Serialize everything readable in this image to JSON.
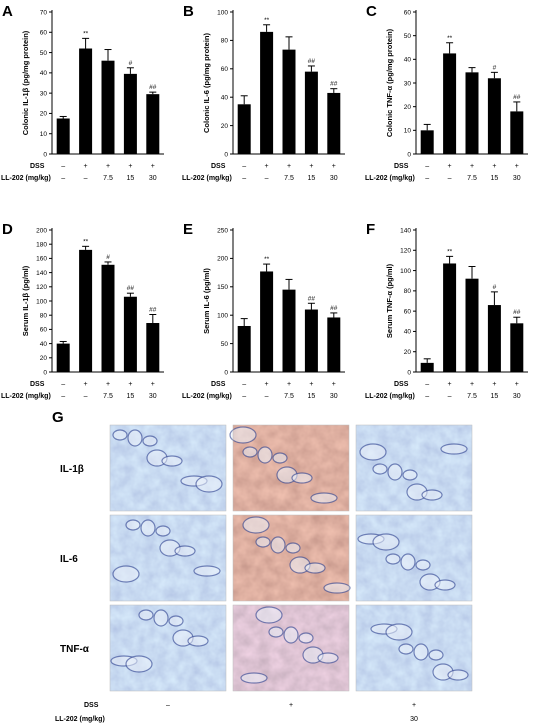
{
  "conditions": {
    "dss_label": "DSS",
    "dose_label": "LL-202 (mg/kg)",
    "dss": [
      "–",
      "+",
      "+",
      "+",
      "+"
    ],
    "dose": [
      "–",
      "–",
      "7.5",
      "15",
      "30"
    ]
  },
  "chart_data": [
    {
      "type": "bar",
      "panel": "A",
      "ylabel": "Colonic IL-1β (pg/mg protein)",
      "ylim": [
        0,
        70
      ],
      "yticks": [
        0,
        10,
        20,
        30,
        40,
        50,
        60,
        70
      ],
      "values": [
        17.5,
        52,
        46,
        39.5,
        29.5
      ],
      "errors": [
        1,
        5,
        5.5,
        3,
        1
      ],
      "annotations": [
        "",
        "**",
        "",
        "#",
        "##"
      ]
    },
    {
      "type": "bar",
      "panel": "B",
      "ylabel": "Colonic IL-6 (pg/mg protein)",
      "ylim": [
        0,
        100
      ],
      "yticks": [
        0,
        20,
        40,
        60,
        80,
        100
      ],
      "values": [
        35,
        86,
        73.5,
        58,
        43
      ],
      "errors": [
        6,
        5,
        9,
        4,
        3
      ],
      "annotations": [
        "",
        "**",
        "",
        "##",
        "##"
      ]
    },
    {
      "type": "bar",
      "panel": "C",
      "ylabel": "Colonic TNF-α (pg/mg protein)",
      "ylim": [
        0,
        60
      ],
      "yticks": [
        0,
        10,
        20,
        30,
        40,
        50,
        60
      ],
      "values": [
        10,
        42.5,
        34.5,
        32,
        18
      ],
      "errors": [
        2.5,
        4.5,
        2,
        2.5,
        4
      ],
      "annotations": [
        "",
        "**",
        "",
        "#",
        "##"
      ]
    },
    {
      "type": "bar",
      "panel": "D",
      "ylabel": "Serum IL-1β (pg/ml)",
      "ylim": [
        0,
        200
      ],
      "yticks": [
        0,
        20,
        40,
        60,
        80,
        100,
        120,
        140,
        160,
        180,
        200
      ],
      "values": [
        40,
        172,
        151,
        106,
        69
      ],
      "errors": [
        3,
        5,
        4,
        5,
        12
      ],
      "annotations": [
        "",
        "**",
        "#",
        "##",
        "##"
      ]
    },
    {
      "type": "bar",
      "panel": "E",
      "ylabel": "Serum IL-6 (pg/ml)",
      "ylim": [
        0,
        250
      ],
      "yticks": [
        0,
        50,
        100,
        150,
        200,
        250
      ],
      "values": [
        81,
        177,
        145,
        110,
        96
      ],
      "errors": [
        13,
        13,
        18,
        11,
        8
      ],
      "annotations": [
        "",
        "**",
        "",
        "##",
        "##"
      ]
    },
    {
      "type": "bar",
      "panel": "F",
      "ylabel": "Serum TNF-α (pg/ml)",
      "ylim": [
        0,
        140
      ],
      "yticks": [
        0,
        20,
        40,
        60,
        80,
        100,
        120,
        140
      ],
      "values": [
        9,
        107,
        92,
        66,
        48
      ],
      "errors": [
        4,
        7,
        12,
        13,
        6
      ],
      "annotations": [
        "",
        "**",
        "",
        "#",
        "##"
      ]
    }
  ],
  "histology": {
    "panel": "G",
    "rows": [
      "IL-1β",
      "IL-6",
      "TNF-α"
    ],
    "dss": [
      "–",
      "+",
      "+"
    ],
    "dose": [
      "",
      "",
      "30"
    ]
  }
}
